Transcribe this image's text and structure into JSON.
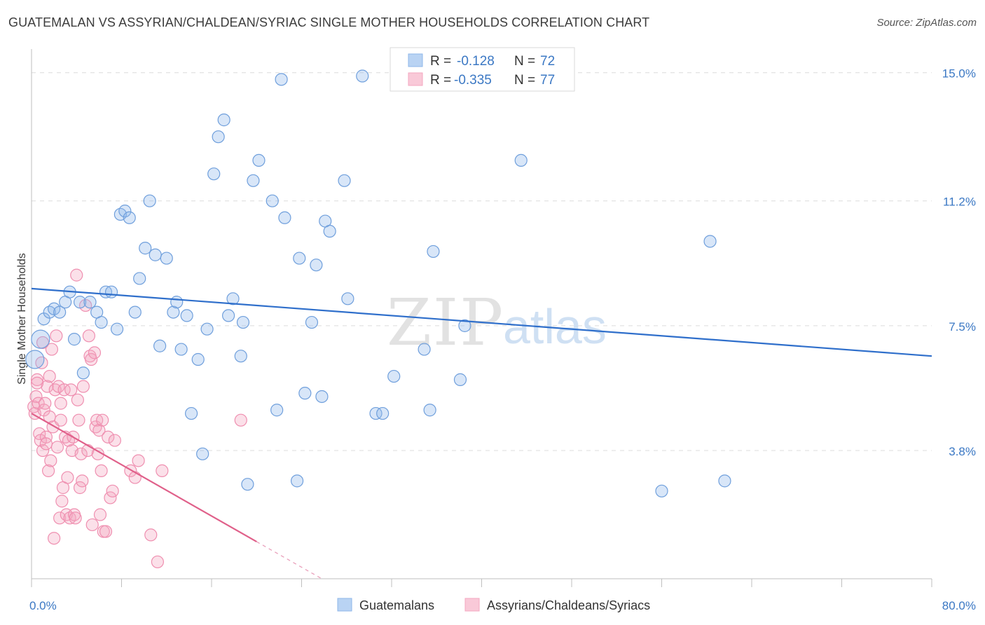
{
  "header": {
    "title": "GUATEMALAN VS ASSYRIAN/CHALDEAN/SYRIAC SINGLE MOTHER HOUSEHOLDS CORRELATION CHART",
    "source": "Source: ZipAtlas.com"
  },
  "watermark": {
    "zip": "ZIP",
    "atlas": "atlas"
  },
  "legend": {
    "rows": [
      {
        "r_label": "R =",
        "r_value": "-0.128",
        "n_label": "N =",
        "n_value": "72"
      },
      {
        "r_label": "R =",
        "r_value": "-0.335",
        "n_label": "N =",
        "n_value": "77"
      }
    ]
  },
  "chart_data": {
    "type": "scatter",
    "title": "GUATEMALAN VS ASSYRIAN/CHALDEAN/SYRIAC SINGLE MOTHER HOUSEHOLDS CORRELATION CHART",
    "xlabel": "",
    "ylabel": "Single Mother Households",
    "xlim": [
      0,
      80
    ],
    "ylim": [
      0,
      15.7
    ],
    "x_tick_labels": [
      "0.0%",
      "80.0%"
    ],
    "y_ticks": [
      3.8,
      7.5,
      11.2,
      15.0
    ],
    "y_tick_labels": [
      "3.8%",
      "7.5%",
      "11.2%",
      "15.0%"
    ],
    "grid": "horizontal dashed",
    "legend_position": "top-center",
    "colors": {
      "guatemalans": "#8fb7ea",
      "assyrians": "#f4a7c0",
      "blue_line": "#2f6fcb",
      "pink_line": "#e0608a"
    },
    "series": [
      {
        "name": "Guatemalans",
        "r": -0.128,
        "n": 72,
        "trend": {
          "x": [
            0,
            80
          ],
          "y": [
            8.6,
            6.6
          ]
        },
        "points": [
          [
            0.3,
            6.5
          ],
          [
            0.8,
            7.1
          ],
          [
            1.1,
            7.7
          ],
          [
            1.6,
            7.9
          ],
          [
            2.0,
            8.0
          ],
          [
            2.5,
            7.9
          ],
          [
            3.0,
            8.2
          ],
          [
            3.4,
            8.5
          ],
          [
            3.8,
            7.1
          ],
          [
            4.3,
            8.2
          ],
          [
            4.6,
            6.1
          ],
          [
            5.2,
            8.2
          ],
          [
            5.8,
            7.9
          ],
          [
            6.2,
            7.6
          ],
          [
            6.6,
            8.5
          ],
          [
            7.1,
            8.5
          ],
          [
            7.6,
            7.4
          ],
          [
            7.9,
            10.8
          ],
          [
            8.3,
            10.9
          ],
          [
            8.7,
            10.7
          ],
          [
            9.2,
            7.9
          ],
          [
            9.6,
            8.9
          ],
          [
            10.1,
            9.8
          ],
          [
            10.5,
            11.2
          ],
          [
            11.0,
            9.6
          ],
          [
            11.4,
            6.9
          ],
          [
            12.0,
            9.5
          ],
          [
            12.6,
            7.9
          ],
          [
            12.9,
            8.2
          ],
          [
            13.3,
            6.8
          ],
          [
            13.8,
            7.8
          ],
          [
            14.2,
            4.9
          ],
          [
            14.8,
            6.5
          ],
          [
            15.2,
            3.7
          ],
          [
            15.6,
            7.4
          ],
          [
            16.2,
            12.0
          ],
          [
            16.6,
            13.1
          ],
          [
            17.1,
            13.6
          ],
          [
            17.5,
            7.8
          ],
          [
            17.9,
            8.3
          ],
          [
            18.6,
            6.6
          ],
          [
            18.8,
            7.6
          ],
          [
            19.2,
            2.8
          ],
          [
            19.7,
            11.8
          ],
          [
            20.2,
            12.4
          ],
          [
            21.4,
            11.2
          ],
          [
            21.8,
            5.0
          ],
          [
            22.2,
            14.8
          ],
          [
            22.5,
            10.7
          ],
          [
            23.6,
            2.9
          ],
          [
            23.8,
            9.5
          ],
          [
            24.3,
            5.5
          ],
          [
            24.9,
            7.6
          ],
          [
            25.3,
            9.3
          ],
          [
            25.8,
            5.4
          ],
          [
            26.1,
            10.6
          ],
          [
            26.5,
            10.3
          ],
          [
            27.8,
            11.8
          ],
          [
            28.1,
            8.3
          ],
          [
            29.4,
            14.9
          ],
          [
            30.6,
            4.9
          ],
          [
            31.2,
            4.9
          ],
          [
            32.2,
            6.0
          ],
          [
            34.9,
            6.8
          ],
          [
            35.4,
            5.0
          ],
          [
            35.7,
            9.7
          ],
          [
            38.1,
            5.9
          ],
          [
            38.5,
            7.5
          ],
          [
            43.5,
            12.4
          ],
          [
            56.0,
            2.6
          ],
          [
            60.3,
            10.0
          ],
          [
            61.6,
            2.9
          ]
        ],
        "large_points": [
          [
            0.3,
            6.5
          ],
          [
            0.8,
            7.1
          ]
        ]
      },
      {
        "name": "Assyrians/Chaldeans/Syriacs",
        "r": -0.335,
        "n": 77,
        "trend": {
          "x": [
            0,
            20.0
          ],
          "y": [
            4.9,
            1.1
          ]
        },
        "trend_dashed": {
          "x": [
            20.0,
            25.8
          ],
          "y": [
            1.1,
            0.0
          ]
        },
        "points": [
          [
            0.2,
            5.1
          ],
          [
            0.3,
            4.9
          ],
          [
            0.4,
            5.4
          ],
          [
            0.5,
            5.9
          ],
          [
            0.6,
            5.2
          ],
          [
            0.7,
            4.3
          ],
          [
            0.8,
            4.1
          ],
          [
            0.9,
            6.4
          ],
          [
            1.0,
            7.0
          ],
          [
            1.0,
            3.8
          ],
          [
            1.1,
            5.0
          ],
          [
            1.2,
            5.2
          ],
          [
            1.3,
            4.2
          ],
          [
            1.4,
            5.7
          ],
          [
            1.5,
            3.2
          ],
          [
            1.6,
            6.0
          ],
          [
            1.6,
            4.8
          ],
          [
            1.7,
            3.5
          ],
          [
            1.8,
            6.8
          ],
          [
            1.9,
            4.5
          ],
          [
            2.0,
            1.2
          ],
          [
            2.1,
            5.6
          ],
          [
            2.2,
            7.2
          ],
          [
            2.3,
            3.9
          ],
          [
            2.4,
            5.7
          ],
          [
            2.5,
            1.8
          ],
          [
            2.6,
            4.7
          ],
          [
            2.7,
            2.3
          ],
          [
            2.8,
            2.7
          ],
          [
            2.9,
            5.6
          ],
          [
            3.0,
            4.2
          ],
          [
            3.1,
            1.9
          ],
          [
            3.2,
            3.0
          ],
          [
            3.3,
            4.1
          ],
          [
            3.4,
            1.8
          ],
          [
            3.5,
            5.6
          ],
          [
            3.6,
            3.8
          ],
          [
            3.7,
            4.2
          ],
          [
            3.8,
            1.9
          ],
          [
            3.9,
            1.8
          ],
          [
            4.0,
            9.0
          ],
          [
            4.1,
            5.3
          ],
          [
            4.2,
            4.7
          ],
          [
            4.3,
            2.7
          ],
          [
            4.4,
            3.7
          ],
          [
            4.5,
            2.9
          ],
          [
            4.6,
            5.7
          ],
          [
            4.8,
            8.1
          ],
          [
            5.0,
            3.8
          ],
          [
            5.1,
            7.2
          ],
          [
            5.2,
            6.6
          ],
          [
            5.3,
            6.5
          ],
          [
            5.4,
            1.6
          ],
          [
            5.6,
            6.7
          ],
          [
            5.7,
            4.5
          ],
          [
            5.8,
            4.7
          ],
          [
            5.9,
            3.7
          ],
          [
            6.0,
            4.4
          ],
          [
            6.1,
            1.9
          ],
          [
            6.2,
            3.2
          ],
          [
            6.3,
            4.7
          ],
          [
            6.4,
            1.4
          ],
          [
            6.6,
            1.4
          ],
          [
            6.8,
            4.2
          ],
          [
            7.0,
            2.4
          ],
          [
            7.2,
            2.6
          ],
          [
            7.4,
            4.1
          ],
          [
            8.8,
            3.2
          ],
          [
            9.2,
            3.0
          ],
          [
            9.5,
            3.5
          ],
          [
            10.6,
            1.3
          ],
          [
            11.2,
            0.5
          ],
          [
            11.6,
            3.2
          ],
          [
            18.6,
            4.7
          ],
          [
            1.3,
            4.0
          ],
          [
            2.6,
            5.2
          ],
          [
            0.5,
            5.8
          ]
        ]
      }
    ]
  },
  "bottom_legend": {
    "items": [
      {
        "label": "Guatemalans"
      },
      {
        "label": "Assyrians/Chaldeans/Syriacs"
      }
    ]
  }
}
